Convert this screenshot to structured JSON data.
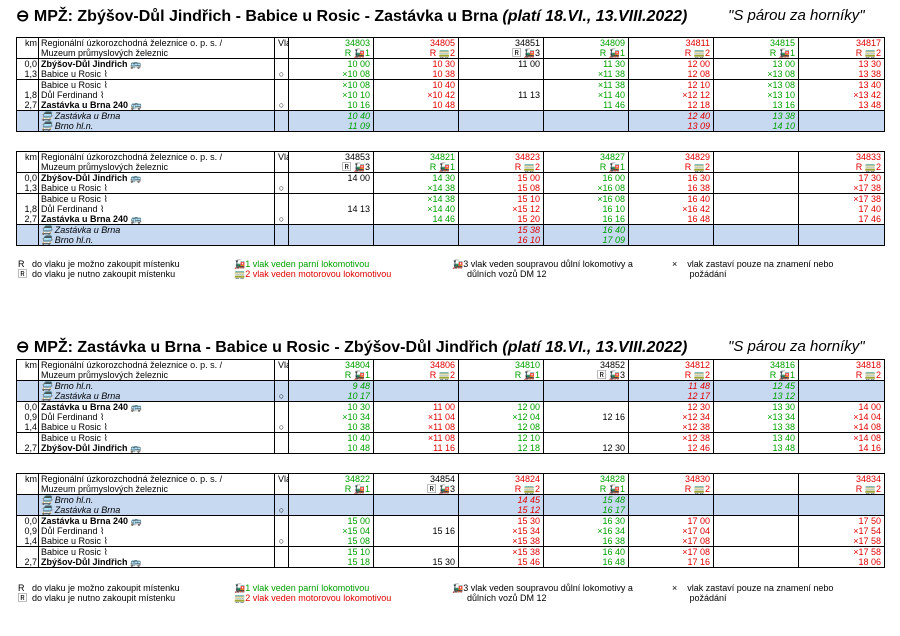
{
  "colors": {
    "steam": "#00a000",
    "motor": "#e00000",
    "highlight": "#c6d9f1"
  },
  "icons": {
    "clock": "clock-arrow-icon",
    "train": "steam-train-icon",
    "bus": "bus-icon",
    "stop": "request-stop-icon",
    "ticket": "ticket-icon"
  },
  "t1": {
    "title": "MPŽ: Zbýšov-Důl Jindřich - Babice u Rosic - Zastávka u Brna",
    "valid": "(platí 18.VI., 13.VIII.2022)",
    "motto": "\"S párou za horníky\"",
    "header": {
      "km": "km",
      "op1": "Regionální úzkorozchodná železnice o. p. s. /",
      "op2": "Muzeum průmyslových železnic",
      "vlak": "Vlak"
    },
    "trains": [
      {
        "no": "34803",
        "sym": "R 🚂1",
        "c": "g"
      },
      {
        "no": "34805",
        "sym": "R 🚃2",
        "c": "r"
      },
      {
        "no": "34851",
        "sym": "🅁 🚂3",
        "c": "k"
      },
      {
        "no": "34809",
        "sym": "R 🚂1",
        "c": "g"
      },
      {
        "no": "34811",
        "sym": "R 🚃2",
        "c": "r"
      },
      {
        "no": "34815",
        "sym": "R 🚂1",
        "c": "g"
      },
      {
        "no": "34817",
        "sym": "R 🚃2",
        "c": "r"
      }
    ],
    "rows": [
      {
        "km": "0,0",
        "st": "Zbýšov-Důl Jindřich 🚌",
        "b": true,
        "cls": "sep",
        "t": [
          "10 00",
          "10 30",
          "11 00",
          "11 30",
          "12 00",
          "13 00",
          "13 30"
        ]
      },
      {
        "km": "1,3",
        "st": "Babice u Rosic ⌇",
        "stop": "○",
        "t": [
          "×10 08",
          "10 38",
          "",
          "×11 38",
          "12 08",
          "×13 08",
          "13 38"
        ]
      },
      {
        "km": "",
        "st": "Babice u Rosic ⌇",
        "cls": "sep",
        "t": [
          "×10 08",
          "10 40",
          "",
          "×11 38",
          "12 10",
          "×13 08",
          "13 40"
        ]
      },
      {
        "km": "1,8",
        "st": "Důl Ferdinand ⌇",
        "t": [
          "×10 10",
          "×10 42",
          "11 13",
          "×11 40",
          "×12 12",
          "×13 10",
          "×13 42"
        ]
      },
      {
        "km": "2,7",
        "st": "Zastávka u Brna 240 🚌",
        "b": true,
        "stop": "○",
        "t": [
          "10 16",
          "10 48",
          "",
          "11 46",
          "12 18",
          "13 16",
          "13 48"
        ]
      },
      {
        "km": "",
        "st": "🚍 Zastávka u Brna",
        "i": true,
        "blue": true,
        "cls": "sep",
        "t": [
          "10 40",
          "",
          "",
          "",
          "12 40",
          "13 38",
          ""
        ]
      },
      {
        "km": "",
        "st": "🚍 Brno hl.n.",
        "i": true,
        "blue": true,
        "last": true,
        "t": [
          "11 09",
          "",
          "",
          "",
          "13 09",
          "14 10",
          ""
        ]
      }
    ]
  },
  "t2": {
    "header": {
      "km": "km",
      "op1": "Regionální úzkorozchodná železnice o. p. s. /",
      "op2": "Muzeum průmyslových železnic",
      "vlak": "Vlak"
    },
    "trains": [
      {
        "no": "34853",
        "sym": "🅁 🚂3",
        "c": "k"
      },
      {
        "no": "34821",
        "sym": "R 🚂1",
        "c": "g"
      },
      {
        "no": "34823",
        "sym": "R 🚃2",
        "c": "r"
      },
      {
        "no": "34827",
        "sym": "R 🚂1",
        "c": "g"
      },
      {
        "no": "34829",
        "sym": "R 🚃2",
        "c": "r"
      },
      {
        "no": "",
        "sym": "",
        "c": "k"
      },
      {
        "no": "34833",
        "sym": "R 🚃2",
        "c": "r"
      }
    ],
    "rows": [
      {
        "km": "0,0",
        "st": "Zbýšov-Důl Jindřich 🚌",
        "b": true,
        "cls": "sep",
        "t": [
          "14 00",
          "14 30",
          "15 00",
          "16 00",
          "16 30",
          "",
          "17 30"
        ]
      },
      {
        "km": "1,3",
        "st": "Babice u Rosic ⌇",
        "stop": "○",
        "t": [
          "",
          "×14 38",
          "15 08",
          "×16 08",
          "16 38",
          "",
          "×17 38"
        ]
      },
      {
        "km": "",
        "st": "Babice u Rosic ⌇",
        "cls": "sep",
        "t": [
          "",
          "×14 38",
          "15 10",
          "×16 08",
          "16 40",
          "",
          "×17 38"
        ]
      },
      {
        "km": "1,8",
        "st": "Důl Ferdinand ⌇",
        "t": [
          "14 13",
          "×14 40",
          "×15 12",
          "16 10",
          "×16 42",
          "",
          "17 40"
        ]
      },
      {
        "km": "2,7",
        "st": "Zastávka u Brna 240 🚌",
        "b": true,
        "stop": "○",
        "t": [
          "",
          "14 46",
          "15 20",
          "16 16",
          "16 48",
          "",
          "17 46"
        ]
      },
      {
        "km": "",
        "st": "🚍 Zastávka u Brna",
        "i": true,
        "blue": true,
        "cls": "sep",
        "t": [
          "",
          "",
          "15 38",
          "16 40",
          "",
          "",
          ""
        ]
      },
      {
        "km": "",
        "st": "🚍 Brno hl.n.",
        "i": true,
        "blue": true,
        "last": true,
        "t": [
          "",
          "",
          "16 10",
          "17 09",
          "",
          "",
          ""
        ]
      }
    ]
  },
  "legend": {
    "r": "R",
    "r_text": "do vlaku je možno zakoupit místenku",
    "rb": "🅁",
    "rb_text": "do vlaku je nutno zakoupit místenku",
    "s1": "🚂1",
    "s1_text": "vlak veden parní lokomotivou",
    "s2": "🚃2",
    "s2_text": "vlak veden motorovou lokomotivou",
    "s3": "🚂3",
    "s3_text_1": "vlak veden soupravou důlní lokomotivy a",
    "s3_text_2": "důlních vozů DM 12",
    "x": "×",
    "x_text_1": "vlak zastaví pouze na znamení nebo",
    "x_text_2": "požádání"
  },
  "t3": {
    "title": "MPŽ: Zastávka u Brna - Babice u Rosic - Zbýšov-Důl Jindřich",
    "valid": "(platí 18.VI., 13.VIII.2022)",
    "motto": "\"S párou za horníky\"",
    "header": {
      "km": "km",
      "op1": "Regionální úzkorozchodná železnice o. p. s. /",
      "op2": "Muzeum průmyslových železnic",
      "vlak": "Vlak"
    },
    "trains": [
      {
        "no": "34804",
        "sym": "R 🚂1",
        "c": "g"
      },
      {
        "no": "34806",
        "sym": "R 🚃2",
        "c": "r"
      },
      {
        "no": "34810",
        "sym": "R 🚂1",
        "c": "g"
      },
      {
        "no": "34852",
        "sym": "🅁 🚂3",
        "c": "k"
      },
      {
        "no": "34812",
        "sym": "R 🚃2",
        "c": "r"
      },
      {
        "no": "34816",
        "sym": "R 🚂1",
        "c": "g"
      },
      {
        "no": "34818",
        "sym": "R 🚃2",
        "c": "r"
      }
    ],
    "rows": [
      {
        "km": "",
        "st": "🚍 Brno hl.n.",
        "i": true,
        "blue": true,
        "cls": "sep",
        "t": [
          "9 48",
          "",
          "",
          "",
          "11 48",
          "12 45",
          ""
        ]
      },
      {
        "km": "",
        "st": "🚍 Zastávka u Brna",
        "i": true,
        "blue": true,
        "stop": "○",
        "t": [
          "10 17",
          "",
          "",
          "",
          "12 17",
          "13 12",
          ""
        ]
      },
      {
        "km": "0,0",
        "st": "Zastávka u Brna 240 🚌",
        "b": true,
        "cls": "sep",
        "t": [
          "10 30",
          "11 00",
          "12 00",
          "",
          "12 30",
          "13 30",
          "14 00"
        ]
      },
      {
        "km": "0,9",
        "st": "Důl Ferdinand ⌇",
        "t": [
          "×10 34",
          "×11 04",
          "×12 04",
          "12 16",
          "×12 34",
          "×13 34",
          "×14 04"
        ]
      },
      {
        "km": "1,4",
        "st": "Babice u Rosic ⌇",
        "stop": "○",
        "t": [
          "10 38",
          "×11 08",
          "12 08",
          "",
          "×12 38",
          "13 38",
          "×14 08"
        ]
      },
      {
        "km": "",
        "st": "Babice u Rosic ⌇",
        "cls": "sep",
        "t": [
          "10 40",
          "×11 08",
          "12 10",
          "",
          "×12 38",
          "13 40",
          "×14 08"
        ]
      },
      {
        "km": "2,7",
        "st": "Zbýšov-Důl Jindřich 🚌",
        "b": true,
        "last": true,
        "t": [
          "10 48",
          "11 16",
          "12 18",
          "12 30",
          "12 46",
          "13 48",
          "14 16"
        ]
      }
    ]
  },
  "t4": {
    "header": {
      "km": "km",
      "op1": "Regionální úzkorozchodná železnice o. p. s. /",
      "op2": "Muzeum průmyslových železnic",
      "vlak": "Vlak"
    },
    "trains": [
      {
        "no": "34822",
        "sym": "R 🚂1",
        "c": "g"
      },
      {
        "no": "34854",
        "sym": "🅁 🚂3",
        "c": "k"
      },
      {
        "no": "34824",
        "sym": "R 🚃2",
        "c": "r"
      },
      {
        "no": "34828",
        "sym": "R 🚂1",
        "c": "g"
      },
      {
        "no": "34830",
        "sym": "R 🚃2",
        "c": "r"
      },
      {
        "no": "",
        "sym": "",
        "c": "k"
      },
      {
        "no": "34834",
        "sym": "R 🚃2",
        "c": "r"
      }
    ],
    "rows": [
      {
        "km": "",
        "st": "🚍 Brno hl.n.",
        "i": true,
        "blue": true,
        "cls": "sep",
        "t": [
          "",
          "",
          "14 45",
          "15 48",
          "",
          "",
          ""
        ]
      },
      {
        "km": "",
        "st": "🚍 Zastávka u Brna",
        "i": true,
        "blue": true,
        "stop": "○",
        "t": [
          "",
          "",
          "15 12",
          "16 17",
          "",
          "",
          ""
        ]
      },
      {
        "km": "0,0",
        "st": "Zastávka u Brna 240 🚌",
        "b": true,
        "cls": "sep",
        "t": [
          "15 00",
          "",
          "15 30",
          "16 30",
          "17 00",
          "",
          "17 50"
        ]
      },
      {
        "km": "0,9",
        "st": "Důl Ferdinand ⌇",
        "t": [
          "×15 04",
          "15 16",
          "×15 34",
          "×16 34",
          "×17 04",
          "",
          "×17 54"
        ]
      },
      {
        "km": "1,4",
        "st": "Babice u Rosic ⌇",
        "stop": "○",
        "t": [
          "15 08",
          "",
          "×15 38",
          "16 38",
          "×17 08",
          "",
          "×17 58"
        ]
      },
      {
        "km": "",
        "st": "Babice u Rosic ⌇",
        "cls": "sep",
        "t": [
          "15 10",
          "",
          "×15 38",
          "16 40",
          "×17 08",
          "",
          "×17 58"
        ]
      },
      {
        "km": "2,7",
        "st": "Zbýšov-Důl Jindřich 🚌",
        "b": true,
        "last": true,
        "t": [
          "15 18",
          "15 30",
          "15 46",
          "16 48",
          "17 16",
          "",
          "18 06"
        ]
      }
    ]
  }
}
